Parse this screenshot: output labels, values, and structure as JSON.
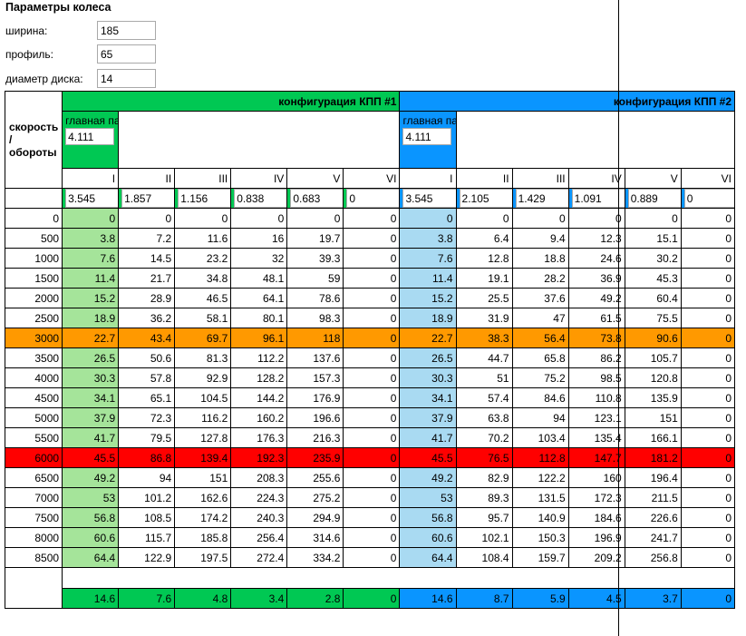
{
  "params": {
    "title": "Параметры колеса",
    "width_label": "ширина:",
    "width_value": "185",
    "profile_label": "профиль:",
    "profile_value": "65",
    "diameter_label": "диаметр диска:",
    "diameter_value": "14"
  },
  "table": {
    "corner_label": "скорость / обороты",
    "config1_title": "конфигурация КПП #1",
    "config2_title": "конфигурация КПП #2",
    "main_pair_label": "главная пара",
    "config1_main_pair": "4.111",
    "config2_main_pair": "4.111",
    "gears": [
      "I",
      "II",
      "III",
      "IV",
      "V",
      "VI"
    ],
    "config1_ratios": [
      "3.545",
      "1.857",
      "1.156",
      "0.838",
      "0.683",
      "0"
    ],
    "config2_ratios": [
      "3.545",
      "2.105",
      "1.429",
      "1.091",
      "0.889",
      "0"
    ],
    "rows": [
      {
        "rpm": "0",
        "c1": [
          "0",
          "0",
          "0",
          "0",
          "0",
          "0"
        ],
        "c2": [
          "0",
          "0",
          "0",
          "0",
          "0",
          "0"
        ]
      },
      {
        "rpm": "500",
        "c1": [
          "3.8",
          "7.2",
          "11.6",
          "16",
          "19.7",
          "0"
        ],
        "c2": [
          "3.8",
          "6.4",
          "9.4",
          "12.3",
          "15.1",
          "0"
        ]
      },
      {
        "rpm": "1000",
        "c1": [
          "7.6",
          "14.5",
          "23.2",
          "32",
          "39.3",
          "0"
        ],
        "c2": [
          "7.6",
          "12.8",
          "18.8",
          "24.6",
          "30.2",
          "0"
        ]
      },
      {
        "rpm": "1500",
        "c1": [
          "11.4",
          "21.7",
          "34.8",
          "48.1",
          "59",
          "0"
        ],
        "c2": [
          "11.4",
          "19.1",
          "28.2",
          "36.9",
          "45.3",
          "0"
        ]
      },
      {
        "rpm": "2000",
        "c1": [
          "15.2",
          "28.9",
          "46.5",
          "64.1",
          "78.6",
          "0"
        ],
        "c2": [
          "15.2",
          "25.5",
          "37.6",
          "49.2",
          "60.4",
          "0"
        ]
      },
      {
        "rpm": "2500",
        "c1": [
          "18.9",
          "36.2",
          "58.1",
          "80.1",
          "98.3",
          "0"
        ],
        "c2": [
          "18.9",
          "31.9",
          "47",
          "61.5",
          "75.5",
          "0"
        ]
      },
      {
        "rpm": "3000",
        "c1": [
          "22.7",
          "43.4",
          "69.7",
          "96.1",
          "118",
          "0"
        ],
        "c2": [
          "22.7",
          "38.3",
          "56.4",
          "73.8",
          "90.6",
          "0"
        ]
      },
      {
        "rpm": "3500",
        "c1": [
          "26.5",
          "50.6",
          "81.3",
          "112.2",
          "137.6",
          "0"
        ],
        "c2": [
          "26.5",
          "44.7",
          "65.8",
          "86.2",
          "105.7",
          "0"
        ]
      },
      {
        "rpm": "4000",
        "c1": [
          "30.3",
          "57.8",
          "92.9",
          "128.2",
          "157.3",
          "0"
        ],
        "c2": [
          "30.3",
          "51",
          "75.2",
          "98.5",
          "120.8",
          "0"
        ]
      },
      {
        "rpm": "4500",
        "c1": [
          "34.1",
          "65.1",
          "104.5",
          "144.2",
          "176.9",
          "0"
        ],
        "c2": [
          "34.1",
          "57.4",
          "84.6",
          "110.8",
          "135.9",
          "0"
        ]
      },
      {
        "rpm": "5000",
        "c1": [
          "37.9",
          "72.3",
          "116.2",
          "160.2",
          "196.6",
          "0"
        ],
        "c2": [
          "37.9",
          "63.8",
          "94",
          "123.1",
          "151",
          "0"
        ]
      },
      {
        "rpm": "5500",
        "c1": [
          "41.7",
          "79.5",
          "127.8",
          "176.3",
          "216.3",
          "0"
        ],
        "c2": [
          "41.7",
          "70.2",
          "103.4",
          "135.4",
          "166.1",
          "0"
        ]
      },
      {
        "rpm": "6000",
        "c1": [
          "45.5",
          "86.8",
          "139.4",
          "192.3",
          "235.9",
          "0"
        ],
        "c2": [
          "45.5",
          "76.5",
          "112.8",
          "147.7",
          "181.2",
          "0"
        ]
      },
      {
        "rpm": "6500",
        "c1": [
          "49.2",
          "94",
          "151",
          "208.3",
          "255.6",
          "0"
        ],
        "c2": [
          "49.2",
          "82.9",
          "122.2",
          "160",
          "196.4",
          "0"
        ]
      },
      {
        "rpm": "7000",
        "c1": [
          "53",
          "101.2",
          "162.6",
          "224.3",
          "275.2",
          "0"
        ],
        "c2": [
          "53",
          "89.3",
          "131.5",
          "172.3",
          "211.5",
          "0"
        ]
      },
      {
        "rpm": "7500",
        "c1": [
          "56.8",
          "108.5",
          "174.2",
          "240.3",
          "294.9",
          "0"
        ],
        "c2": [
          "56.8",
          "95.7",
          "140.9",
          "184.6",
          "226.6",
          "0"
        ]
      },
      {
        "rpm": "8000",
        "c1": [
          "60.6",
          "115.7",
          "185.8",
          "256.4",
          "314.6",
          "0"
        ],
        "c2": [
          "60.6",
          "102.1",
          "150.3",
          "196.9",
          "241.7",
          "0"
        ]
      },
      {
        "rpm": "8500",
        "c1": [
          "64.4",
          "122.9",
          "197.5",
          "272.4",
          "334.2",
          "0"
        ],
        "c2": [
          "64.4",
          "108.4",
          "159.7",
          "209.2",
          "256.8",
          "0"
        ]
      }
    ],
    "highlight_rows": {
      "3000": "#ff9900",
      "6000": "#ff0000"
    },
    "summary_c1": [
      "14.6",
      "7.6",
      "4.8",
      "3.4",
      "2.8",
      "0"
    ],
    "summary_c2": [
      "14.6",
      "8.7",
      "5.9",
      "4.5",
      "3.7",
      "0"
    ]
  },
  "colors": {
    "config1": "#00c853",
    "config2": "#0a95ff",
    "config1_light": "#a5e49a",
    "config2_light": "#a9daf2",
    "orange": "#ff9900",
    "red": "#ff0000"
  }
}
